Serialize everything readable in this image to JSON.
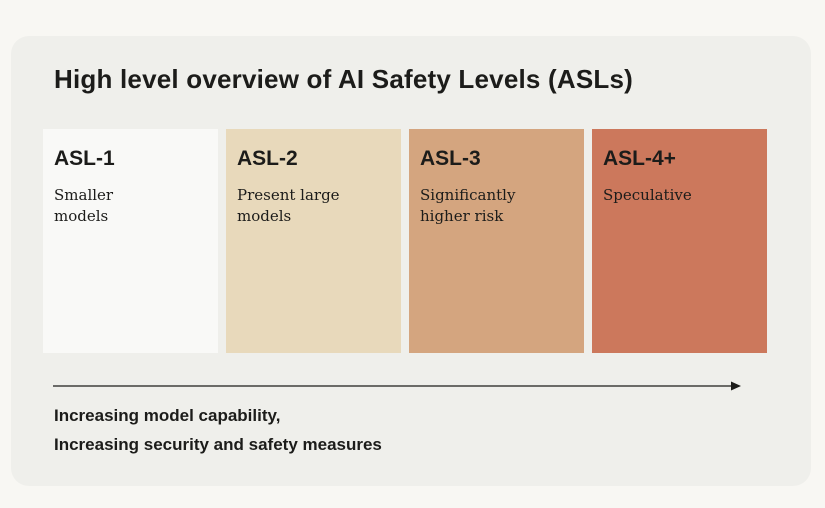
{
  "title": "High level overview of AI Safety Levels (ASLs)",
  "levels": [
    {
      "label": "ASL-1",
      "desc": "Smaller models",
      "color": "#f9f9f7"
    },
    {
      "label": "ASL-2",
      "desc": "Present large models",
      "color": "#e8d9bb"
    },
    {
      "label": "ASL-3",
      "desc": "Significantly higher risk",
      "color": "#d4a57f"
    },
    {
      "label": "ASL-4+",
      "desc": "Speculative",
      "color": "#cc785c"
    }
  ],
  "footer": {
    "line1": "Increasing model capability,",
    "line2": "Increasing security and safety measures"
  }
}
